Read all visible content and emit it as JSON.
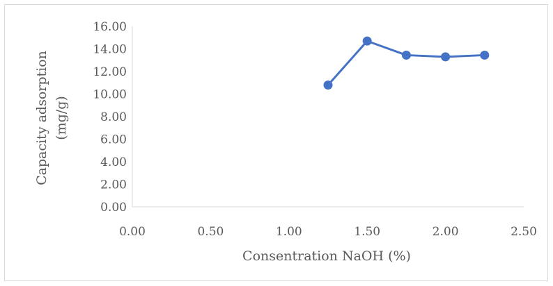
{
  "chart_data": {
    "type": "line",
    "title": "",
    "xlabel": "Consentration NaOH (%)",
    "ylabel_lines": [
      "Capacity adsorption",
      "(mg/g)"
    ],
    "xlim": [
      0,
      2.5
    ],
    "ylim": [
      0,
      16
    ],
    "x_ticks": [
      "0.00",
      "0.50",
      "1.00",
      "1.50",
      "2.00",
      "2.50"
    ],
    "x_tick_values": [
      0,
      0.5,
      1.0,
      1.5,
      2.0,
      2.5
    ],
    "y_ticks": [
      "0.00",
      "2.00",
      "4.00",
      "6.00",
      "8.00",
      "10.00",
      "12.00",
      "14.00",
      "16.00"
    ],
    "y_tick_values": [
      0,
      2,
      4,
      6,
      8,
      10,
      12,
      14,
      16
    ],
    "grid": false,
    "legend": "none",
    "series": [
      {
        "x": [
          1.25,
          1.5,
          1.75,
          2.0,
          2.25
        ],
        "y": [
          10.8,
          14.7,
          13.45,
          13.3,
          13.45
        ],
        "color": "#4472c4"
      }
    ],
    "axis_color": "#d9d9d9",
    "text_color": "#595959"
  }
}
